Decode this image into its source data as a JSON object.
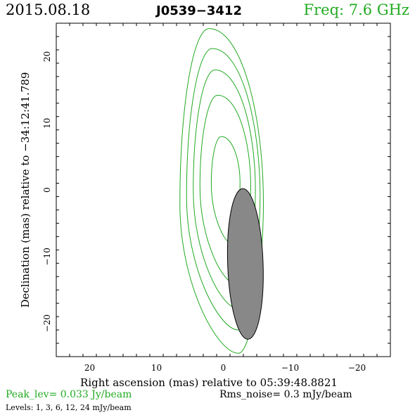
{
  "header": {
    "date": "2015.08.18",
    "source": "J0539−3412",
    "frequency": "Freq:  7.6  GHz"
  },
  "footer": {
    "peak": "Peak_lev=   0.033  Jy/beam",
    "rms": "Rms_noise=    0.3  mJy/beam",
    "levels": "Levels:    1,    3,    6,   12,   24  mJy/beam"
  },
  "colors": {
    "contour": "#22aa22",
    "beam_fill": "#888888",
    "axes": "#000000"
  },
  "chart_data": {
    "type": "contour",
    "title": "",
    "xlabel": "Right ascension (mas) relative to 05:39:48.8821",
    "ylabel": "Declination (mas) relative to −34:12:41.789",
    "xlim": [
      25,
      -25
    ],
    "ylim": [
      -25,
      25
    ],
    "x_ticks": [
      20,
      10,
      0,
      -10,
      -20
    ],
    "y_ticks": [
      20,
      10,
      0,
      -10,
      -20
    ],
    "x_tick_labels": [
      "20",
      "10",
      "0",
      "−10",
      "−20"
    ],
    "y_tick_labels": [
      "20",
      "10",
      "0",
      "−10",
      "−20"
    ],
    "grid": false,
    "contour_levels_mJy": [
      1,
      3,
      6,
      12,
      24
    ],
    "contours": [
      {
        "level": 1,
        "top": 24.2,
        "bottom": -24.5,
        "left": 6.5,
        "right": -6.0,
        "center_dec": -2.0
      },
      {
        "level": 3,
        "top": 21.2,
        "bottom": -21.0,
        "left": 5.5,
        "right": -5.5,
        "center_dec": -1.0
      },
      {
        "level": 6,
        "top": 18.0,
        "bottom": -17.7,
        "left": 4.5,
        "right": -4.8,
        "center_dec": 0.0
      },
      {
        "level": 12,
        "top": 14.2,
        "bottom": -14.1,
        "left": 3.5,
        "right": -4.1,
        "center_dec": 0.5
      },
      {
        "level": 24,
        "top": 8.0,
        "bottom": -8.0,
        "left": 1.8,
        "right": -2.5,
        "center_dec": 1.0
      }
    ],
    "beam": {
      "center_ra": -3.3,
      "center_dec": -11.1,
      "major_mas": 22.6,
      "minor_mas": 5.3,
      "pa_deg": -2
    }
  }
}
